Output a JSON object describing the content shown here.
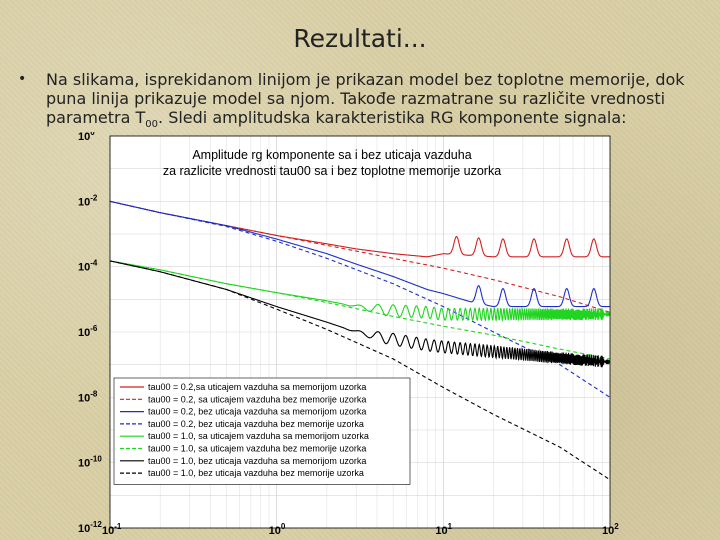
{
  "slide": {
    "title": "Rezultati...",
    "bullet_marker": "•",
    "bullet_text_part1": "Na slikama, isprekidanom linijom je prikazan model bez toplotne memorije, dok puna linija prikazuje model sa njom. Takođe razmatrane su različite vrednosti parametra T",
    "bullet_sub": "00",
    "bullet_text_part2": ". Sledi amplitudska karakteristika RG komponente signala:"
  },
  "chart_data": {
    "type": "line",
    "title": "Amplitude rg komponente sa i bez uticaja vazduha",
    "subtitle": "za razlicite vrednosti tau00 sa i bez toplotne memorije uzorka",
    "xlabel": "",
    "ylabel": "",
    "x_scale": "log",
    "y_scale": "log",
    "xlim": [
      0.1,
      100
    ],
    "ylim": [
      1e-12,
      1
    ],
    "grid": true,
    "legend_position": "bottom-left",
    "x_ticks": [
      {
        "value": 0.1,
        "base": "10",
        "exp": "-1"
      },
      {
        "value": 1,
        "base": "10",
        "exp": "0"
      },
      {
        "value": 10,
        "base": "10",
        "exp": "1"
      },
      {
        "value": 100,
        "base": "10",
        "exp": "2"
      }
    ],
    "y_ticks": [
      {
        "value": 1,
        "base": "10",
        "exp": "0"
      },
      {
        "value": 0.01,
        "base": "10",
        "exp": "-2"
      },
      {
        "value": 0.0001,
        "base": "10",
        "exp": "-4"
      },
      {
        "value": 1e-06,
        "base": "10",
        "exp": "-6"
      },
      {
        "value": 1e-08,
        "base": "10",
        "exp": "-8"
      },
      {
        "value": 1e-10,
        "base": "10",
        "exp": "-10"
      },
      {
        "value": 1e-12,
        "base": "10",
        "exp": "-12"
      }
    ],
    "series": [
      {
        "name": "tau00 = 0.2,sa uticajem vazduha sa memorijom uzorka",
        "color": "#d42020",
        "dashed": false,
        "x": [
          0.1,
          0.2,
          0.5,
          1,
          2,
          3,
          5,
          8,
          10,
          20,
          50,
          100
        ],
        "y": [
          0.01,
          0.0045,
          0.0018,
          0.0009,
          0.0005,
          0.00035,
          0.00025,
          0.0002,
          0.00025,
          0.0002,
          0.0002,
          0.0002
        ],
        "peaks": [
          12,
          16.3,
          22.8,
          35,
          55,
          80
        ]
      },
      {
        "name": "tau00 = 0.2, sa uticajem vazduha bez memorije uzorka",
        "color": "#d42020",
        "dashed": true,
        "x": [
          0.1,
          0.2,
          0.5,
          1,
          2,
          5,
          10,
          20,
          50,
          100
        ],
        "y": [
          0.01,
          0.0045,
          0.0018,
          0.0009,
          0.00045,
          0.00018,
          9e-05,
          4e-05,
          1.2e-05,
          4e-06
        ]
      },
      {
        "name": "tau00 = 0.2, bez uticaja vazduha sa memorijom uzorka",
        "color": "#1c2ec8",
        "dashed": false,
        "x": [
          0.1,
          0.2,
          0.5,
          1,
          2,
          3,
          5,
          8,
          10,
          15,
          20,
          50,
          100
        ],
        "y": [
          0.01,
          0.0045,
          0.0018,
          0.0007,
          0.00025,
          0.00012,
          5e-05,
          2e-05,
          1.5e-05,
          8e-06,
          6e-06,
          6e-06,
          6e-06
        ],
        "peaks": [
          16.3,
          22.8,
          35,
          55,
          80
        ]
      },
      {
        "name": "tau00 = 0.2, bez uticaja vazduha bez memorije uzorka",
        "color": "#1c2ec8",
        "dashed": true,
        "x": [
          0.1,
          0.2,
          0.5,
          1,
          2,
          5,
          10,
          20,
          50,
          100
        ],
        "y": [
          0.01,
          0.0045,
          0.0017,
          0.0006,
          0.00018,
          3e-05,
          6e-06,
          1e-06,
          1e-07,
          1e-08
        ]
      },
      {
        "name": "tau00 = 1.0, sa uticajem vazduha sa memorijom uzorka",
        "color": "#22d422",
        "dashed": false,
        "x": [
          0.1,
          0.2,
          0.5,
          1,
          2,
          3,
          5,
          8,
          10,
          20,
          50,
          100
        ],
        "y": [
          0.00015,
          8e-05,
          3e-05,
          1.6e-05,
          9e-06,
          6e-06,
          4.5e-06,
          4e-06,
          3.5e-06,
          3.5e-06,
          3.5e-06,
          3.5e-06
        ],
        "ripple_from": 2.5
      },
      {
        "name": "tau00 = 1.0, sa uticajem vazduha bez memorije uzorka",
        "color": "#22d422",
        "dashed": true,
        "x": [
          0.1,
          0.2,
          0.5,
          1,
          2,
          5,
          10,
          20,
          50,
          100
        ],
        "y": [
          0.00015,
          8e-05,
          3e-05,
          1.6e-05,
          8e-06,
          3e-06,
          1.5e-06,
          8e-07,
          3e-07,
          1.5e-07
        ]
      },
      {
        "name": "tau00 = 1.0, bez uticaja vazduha sa memorijom uzorka",
        "color": "#000000",
        "dashed": false,
        "x": [
          0.1,
          0.2,
          0.5,
          1,
          2,
          3,
          5,
          8,
          10,
          20,
          50,
          100
        ],
        "y": [
          0.00015,
          7e-05,
          2e-05,
          6e-06,
          2e-06,
          1e-06,
          6e-07,
          4e-07,
          3.5e-07,
          2.5e-07,
          1.6e-07,
          1.2e-07
        ],
        "ripple_from": 2.5
      },
      {
        "name": "tau00 = 1.0, bez uticaja vazduha bez memorije uzorka",
        "color": "#000000",
        "dashed": true,
        "x": [
          0.1,
          0.2,
          0.5,
          1,
          2,
          5,
          10,
          20,
          50,
          100
        ],
        "y": [
          0.00015,
          7e-05,
          2e-05,
          5e-06,
          1.2e-06,
          1.5e-07,
          2e-08,
          3e-09,
          3e-10,
          3e-11
        ]
      }
    ]
  }
}
